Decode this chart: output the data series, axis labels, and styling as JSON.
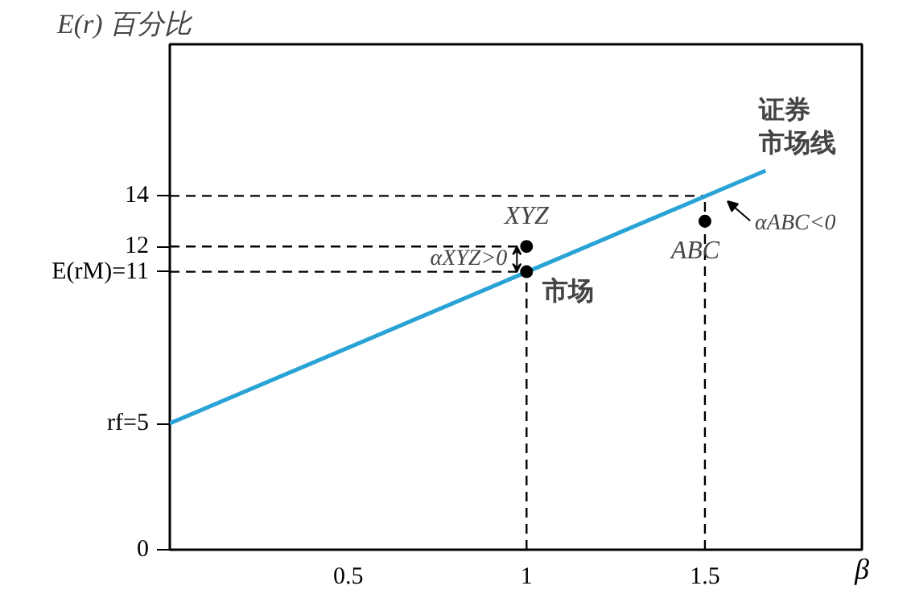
{
  "chart_data": {
    "type": "line",
    "ylabel": "E(r) 百分比",
    "xlabel": "β",
    "xlim": [
      0,
      1.94
    ],
    "ylim": [
      0,
      20
    ],
    "xticks": [
      0.5,
      1,
      1.5
    ],
    "yticks": [
      0,
      {
        "value": 5,
        "label": "rf=5"
      },
      {
        "value": 11,
        "label": "E(rM)=11"
      },
      12,
      14
    ],
    "grid": false,
    "series": [
      {
        "x": [
          0,
          1.5
        ],
        "values": [
          14,
          14
        ],
        "color": "#000000",
        "line_style": "dashed",
        "marker": "none"
      },
      {
        "x": [
          0,
          1
        ],
        "values": [
          12,
          12
        ],
        "color": "#000000",
        "line_style": "dashed",
        "marker": "none"
      },
      {
        "x": [
          0,
          1
        ],
        "values": [
          11,
          11
        ],
        "color": "#000000",
        "line_style": "dashed",
        "marker": "none"
      },
      {
        "x": [
          1,
          1
        ],
        "values": [
          0,
          11
        ],
        "color": "#000000",
        "line_style": "dashed",
        "marker": "none"
      },
      {
        "x": [
          1.5,
          1.5
        ],
        "values": [
          0,
          14
        ],
        "color": "#000000",
        "line_style": "dashed",
        "marker": "none"
      },
      {
        "x": [
          0,
          1.67
        ],
        "values": [
          5,
          15.0
        ],
        "color": "#29a3d6",
        "line_style": "solid",
        "marker": "none"
      },
      {
        "type": "scatter",
        "x": [
          1,
          1,
          1.5
        ],
        "values": [
          12,
          11,
          13
        ],
        "color": "#000000",
        "marker": "circle"
      }
    ],
    "annotations": [
      {
        "text": "XYZ",
        "x": 1,
        "y": 12
      },
      {
        "text": "市场",
        "x": 1,
        "y": 11
      },
      {
        "text": "ABC",
        "x": 1.5,
        "y": 13
      },
      {
        "text": "证券市场线",
        "x": 1.67,
        "y": 15.0
      },
      {
        "text": "αXYZ>0",
        "x": 1,
        "y": 11.5
      },
      {
        "text": "αABC<0",
        "x": 1.55,
        "y": 14.3
      }
    ]
  }
}
